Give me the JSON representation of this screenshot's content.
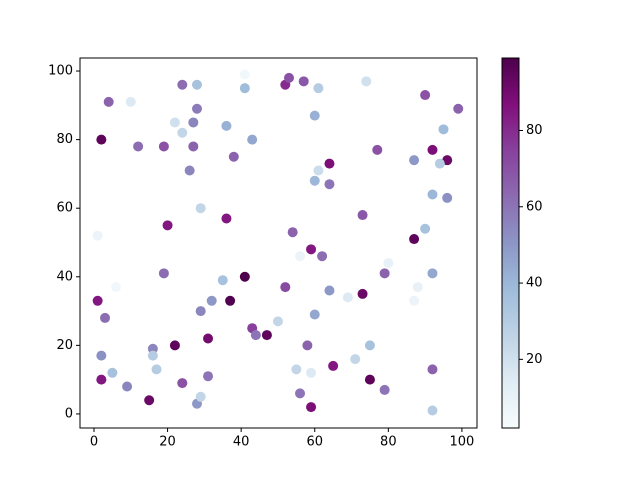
{
  "chart_data": {
    "type": "scatter",
    "x": [
      1,
      2,
      4,
      10,
      12,
      19,
      22,
      24,
      24,
      28,
      27,
      28,
      26,
      27,
      29,
      36,
      38,
      41,
      43,
      41,
      52,
      53,
      57,
      60,
      61,
      61,
      60,
      64,
      64,
      74,
      77,
      87,
      90,
      92,
      96,
      99,
      95,
      94,
      92,
      96,
      90,
      87,
      80,
      79,
      92,
      88,
      87,
      73,
      73,
      69,
      64,
      62,
      59,
      56,
      54,
      60,
      52,
      50,
      36,
      35,
      41,
      37,
      32,
      29,
      31,
      20,
      19,
      22,
      16,
      16,
      17,
      15,
      6,
      1,
      3,
      2,
      2,
      5,
      9,
      24,
      28,
      29,
      31,
      43,
      44,
      47,
      55,
      59,
      56,
      58,
      59,
      65,
      71,
      75,
      75,
      79,
      92,
      92
    ],
    "values": [
      52,
      80,
      91,
      91,
      78,
      78,
      85,
      82,
      96,
      96,
      85,
      89,
      71,
      78,
      60,
      84,
      75,
      95,
      80,
      99,
      96,
      98,
      97,
      87,
      95,
      71,
      68,
      67,
      73,
      97,
      77,
      74,
      93,
      77,
      74,
      89,
      83,
      73,
      64,
      63,
      54,
      51,
      44,
      41,
      41,
      37,
      33,
      58,
      35,
      34,
      36,
      46,
      48,
      46,
      53,
      29,
      37,
      27,
      57,
      39,
      40,
      33,
      33,
      30,
      22,
      55,
      41,
      20,
      19,
      17,
      13,
      4,
      37,
      33,
      28,
      17,
      10,
      12,
      8,
      9,
      3,
      5,
      11,
      25,
      23,
      23,
      13,
      12,
      6,
      20,
      2,
      14,
      16,
      20,
      10,
      7,
      13,
      1
    ],
    "color_values": [
      8,
      95,
      65,
      15,
      62,
      70,
      20,
      25,
      62,
      35,
      55,
      58,
      55,
      65,
      25,
      42,
      65,
      38,
      45,
      5,
      80,
      70,
      68,
      42,
      30,
      22,
      40,
      60,
      88,
      20,
      70,
      50,
      70,
      88,
      92,
      65,
      38,
      30,
      40,
      52,
      35,
      95,
      10,
      65,
      45,
      10,
      8,
      68,
      92,
      15,
      50,
      62,
      85,
      8,
      65,
      45,
      72,
      25,
      85,
      35,
      99,
      98,
      50,
      55,
      90,
      85,
      62,
      95,
      55,
      30,
      30,
      92,
      5,
      85,
      62,
      52,
      85,
      35,
      55,
      70,
      50,
      25,
      60,
      75,
      60,
      95,
      25,
      15,
      60,
      65,
      88,
      85,
      25,
      35,
      95,
      60,
      65,
      30
    ],
    "colorscale": [
      "#f7fcfd",
      "#e0ecf4",
      "#bfd3e6",
      "#9ebcda",
      "#8c96c6",
      "#8c6bb1",
      "#88419d",
      "#810f7c",
      "#4d004b"
    ],
    "xlim": [
      -3.8,
      104.1
    ],
    "ylim": [
      -4.1,
      103.8
    ],
    "xticks": [
      0,
      20,
      40,
      60,
      80,
      100
    ],
    "yticks": [
      0,
      20,
      40,
      60,
      80,
      100
    ],
    "clim": [
      2,
      99
    ],
    "cticks": [
      20,
      40,
      60,
      80
    ]
  }
}
